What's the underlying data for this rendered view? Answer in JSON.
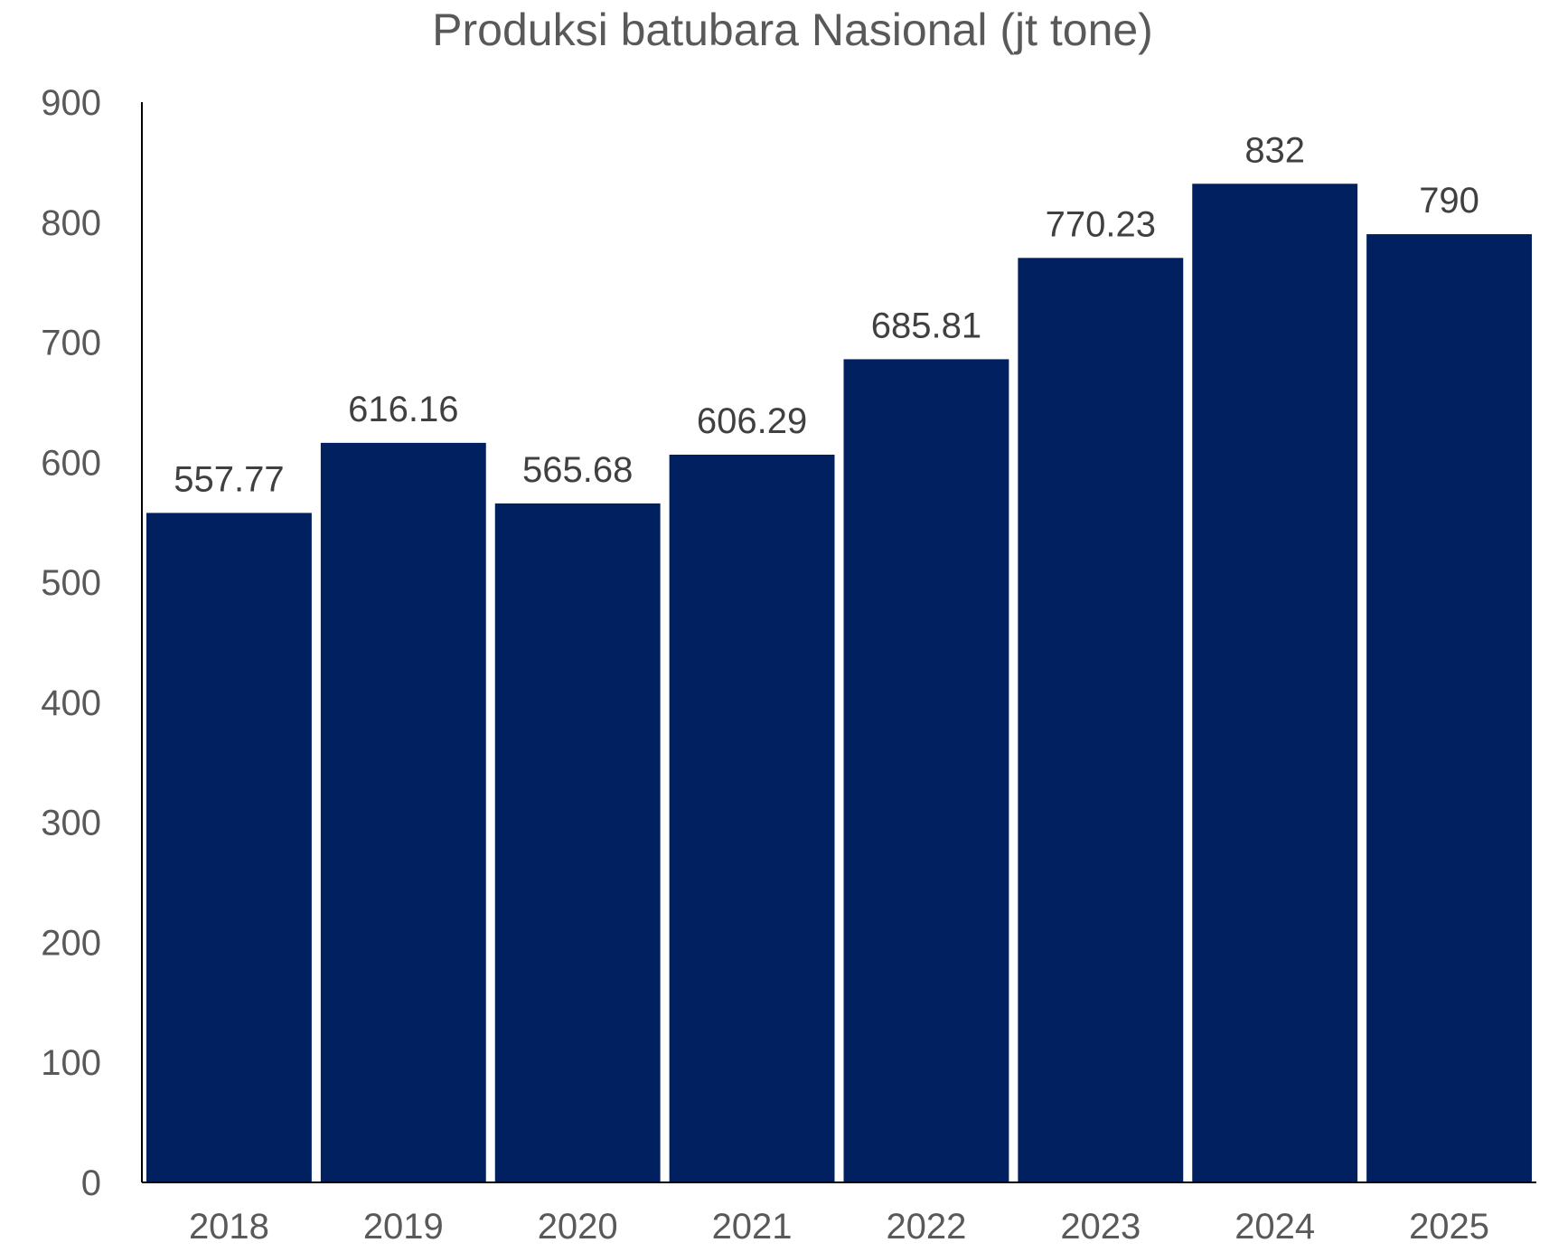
{
  "chart_data": {
    "type": "bar",
    "title": "Produksi batubara Nasional (jt tone)",
    "xlabel": "",
    "ylabel": "",
    "categories": [
      "2018",
      "2019",
      "2020",
      "2021",
      "2022",
      "2023",
      "2024",
      "2025"
    ],
    "values": [
      557.77,
      616.16,
      565.68,
      606.29,
      685.81,
      770.23,
      832,
      790
    ],
    "data_labels": [
      "557.77",
      "616.16",
      "565.68",
      "606.29",
      "685.81",
      "770.23",
      "832",
      "790"
    ],
    "ylim": [
      0,
      900
    ],
    "yticks": [
      0,
      100,
      200,
      300,
      400,
      500,
      600,
      700,
      800,
      900
    ],
    "grid": false,
    "legend": "none",
    "bar_color": "#002060",
    "axis_color": "#000000"
  }
}
